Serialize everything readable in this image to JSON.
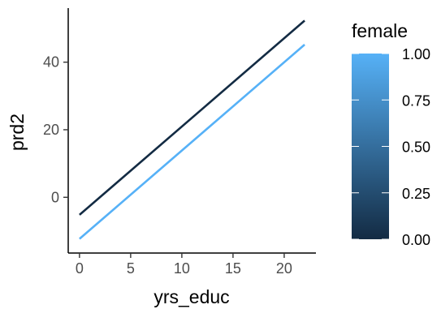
{
  "chart_data": {
    "type": "line",
    "title": "",
    "xlabel": "yrs_educ",
    "ylabel": "prd2",
    "xlim": [
      -1.1,
      23.1
    ],
    "ylim": [
      -16.5,
      56
    ],
    "x_ticks": [
      0,
      5,
      10,
      15,
      20
    ],
    "y_ticks": [
      0,
      20,
      40
    ],
    "x_tick_labels": [
      "0",
      "5",
      "10",
      "15",
      "20"
    ],
    "y_tick_labels": [
      "0",
      "20",
      "40"
    ],
    "grid": false,
    "series": [
      {
        "female": 0,
        "color": "#132b43",
        "x": [
          0,
          22
        ],
        "y": [
          -5.2,
          52.3
        ]
      },
      {
        "female": 1,
        "color": "#56b1f7",
        "x": [
          0,
          22
        ],
        "y": [
          -12.3,
          45.2
        ]
      }
    ],
    "legend": {
      "title": "female",
      "position": "right",
      "type": "colorbar",
      "low_color": "#132b43",
      "high_color": "#56b1f7",
      "range": [
        0,
        1
      ],
      "ticks": [
        0,
        0.25,
        0.5,
        0.75,
        1.0
      ],
      "tick_labels": [
        "0.00",
        "0.25",
        "0.50",
        "0.75",
        "1.00"
      ]
    }
  }
}
